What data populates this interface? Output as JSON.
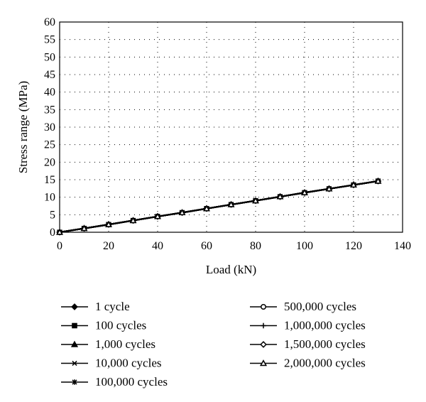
{
  "chart_data": {
    "type": "line",
    "xlabel": "Load (kN)",
    "ylabel": "Stress range (MPa)",
    "xlim": [
      0,
      140
    ],
    "ylim": [
      0,
      60
    ],
    "xticks": [
      0,
      20,
      40,
      60,
      80,
      100,
      120,
      140
    ],
    "yticks": [
      0,
      5,
      10,
      15,
      20,
      25,
      30,
      35,
      40,
      45,
      50,
      55,
      60
    ],
    "grid": "dotted",
    "legend_placement": "bottom",
    "x": [
      0,
      10,
      20,
      30,
      40,
      50,
      60,
      70,
      80,
      90,
      100,
      110,
      120,
      130
    ],
    "series": [
      {
        "name": "1 cycle",
        "marker": "diamond-filled",
        "values": [
          0,
          1.1,
          2.2,
          3.35,
          4.5,
          5.6,
          6.75,
          7.9,
          9.0,
          10.15,
          11.3,
          12.4,
          13.5,
          14.6
        ]
      },
      {
        "name": "100 cycles",
        "marker": "square-filled",
        "values": [
          0,
          1.1,
          2.2,
          3.35,
          4.5,
          5.6,
          6.75,
          7.9,
          9.0,
          10.15,
          11.3,
          12.4,
          13.5,
          14.6
        ]
      },
      {
        "name": "1,000 cycles",
        "marker": "triangle-filled",
        "values": [
          0,
          1.1,
          2.2,
          3.35,
          4.5,
          5.6,
          6.75,
          7.9,
          9.0,
          10.15,
          11.3,
          12.4,
          13.5,
          14.6
        ]
      },
      {
        "name": "10,000 cycles",
        "marker": "x",
        "values": [
          0,
          1.1,
          2.2,
          3.35,
          4.5,
          5.6,
          6.75,
          7.9,
          9.0,
          10.15,
          11.3,
          12.4,
          13.5,
          14.6
        ]
      },
      {
        "name": "100,000 cycles",
        "marker": "asterisk",
        "values": [
          0,
          1.1,
          2.2,
          3.35,
          4.5,
          5.6,
          6.75,
          7.9,
          9.0,
          10.15,
          11.3,
          12.4,
          13.5,
          14.6
        ]
      },
      {
        "name": "500,000 cycles",
        "marker": "circle-open",
        "values": [
          0,
          1.1,
          2.2,
          3.35,
          4.5,
          5.6,
          6.75,
          7.9,
          9.0,
          10.15,
          11.3,
          12.4,
          13.5,
          14.6
        ]
      },
      {
        "name": "1,000,000 cycles",
        "marker": "plus",
        "values": [
          0,
          1.1,
          2.2,
          3.35,
          4.5,
          5.6,
          6.75,
          7.9,
          9.0,
          10.15,
          11.3,
          12.4,
          13.5,
          14.6
        ]
      },
      {
        "name": "1,500,000 cycles",
        "marker": "diamond-open",
        "values": [
          0,
          1.1,
          2.2,
          3.35,
          4.5,
          5.6,
          6.75,
          7.9,
          9.0,
          10.15,
          11.3,
          12.4,
          13.5,
          14.6
        ]
      },
      {
        "name": "2,000,000 cycles",
        "marker": "triangle-open",
        "values": [
          0,
          1.1,
          2.2,
          3.35,
          4.5,
          5.6,
          6.75,
          7.9,
          9.0,
          10.15,
          11.3,
          12.4,
          13.5,
          14.6
        ]
      }
    ],
    "colors": {
      "line": "#000000",
      "grid": "#000000",
      "background": "#ffffff"
    }
  }
}
